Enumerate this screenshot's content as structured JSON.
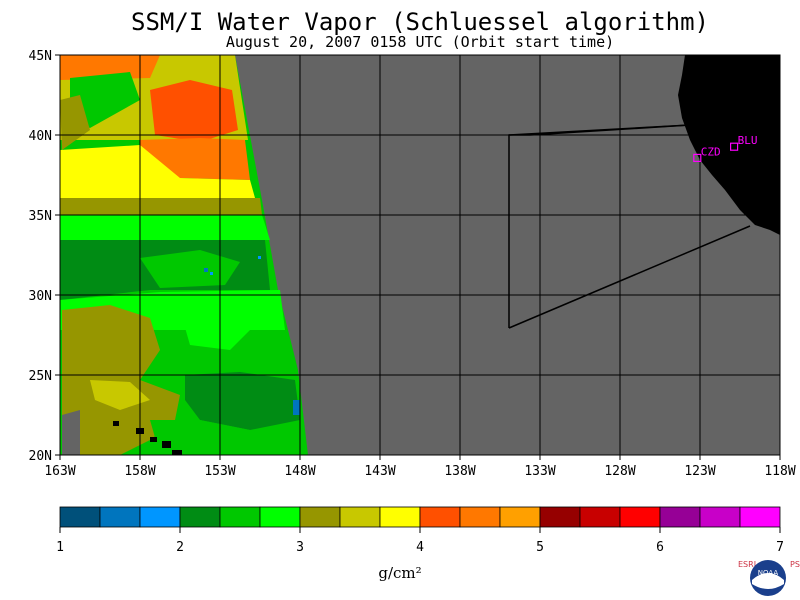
{
  "title": "SSM/I Water Vapor (Schluessel algorithm)",
  "subtitle": "August 20, 2007  0158 UTC  (Orbit start time)",
  "lat_labels": [
    "45N",
    "40N",
    "35N",
    "30N",
    "25N",
    "20N"
  ],
  "lon_labels": [
    "163W",
    "158W",
    "153W",
    "148W",
    "143W",
    "138W",
    "133W",
    "128W",
    "123W",
    "118W"
  ],
  "stations": [
    {
      "code": "CZD",
      "lat": 38.6,
      "lon": -123.2
    },
    {
      "code": "BLU",
      "lat": 39.3,
      "lon": -120.9
    }
  ],
  "colorbar": {
    "colors": [
      "#00507a",
      "#0075be",
      "#0096ff",
      "#008c14",
      "#00c800",
      "#00ff00",
      "#969600",
      "#c8c800",
      "#ffff00",
      "#ff5000",
      "#ff7800",
      "#ffa000",
      "#960000",
      "#c80000",
      "#ff0000",
      "#960096",
      "#c800c8",
      "#ff00ff"
    ],
    "tick_labels": [
      "1",
      "2",
      "3",
      "4",
      "5",
      "6",
      "7"
    ],
    "unit": "g/cm²"
  },
  "map": {
    "ocean_nodata_color": "#646464",
    "land_color": "#000000",
    "lat_range": [
      20,
      45
    ],
    "lon_range": [
      -163,
      -118
    ]
  },
  "logo": {
    "left_text": "ESRL",
    "right_text": "PSD",
    "badge": "NOAA"
  }
}
